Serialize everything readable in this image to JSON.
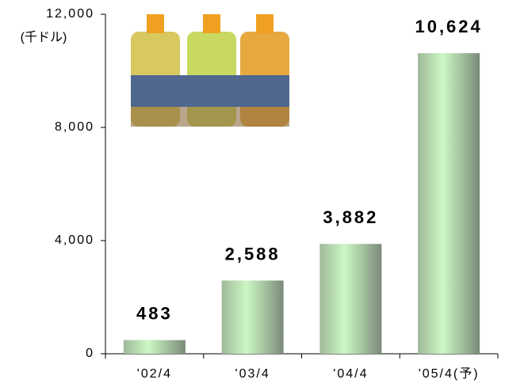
{
  "chart_data": {
    "type": "bar",
    "y_unit_label": "(千ドル)",
    "categories": [
      "'02/4",
      "'03/4",
      "'04/4",
      "'05/4(予)"
    ],
    "values": [
      483,
      2588,
      3882,
      10624
    ],
    "value_labels": [
      "483",
      "2,588",
      "3,882",
      "10,624"
    ],
    "color": "#ccf8c4",
    "ylim": [
      0,
      12000
    ],
    "yticks": [
      0,
      {
        "value": 4000,
        "label": "4,000"
      },
      {
        "value": 8000,
        "label": "8,000"
      },
      {
        "value": 12000,
        "label": "12,000"
      }
    ]
  }
}
